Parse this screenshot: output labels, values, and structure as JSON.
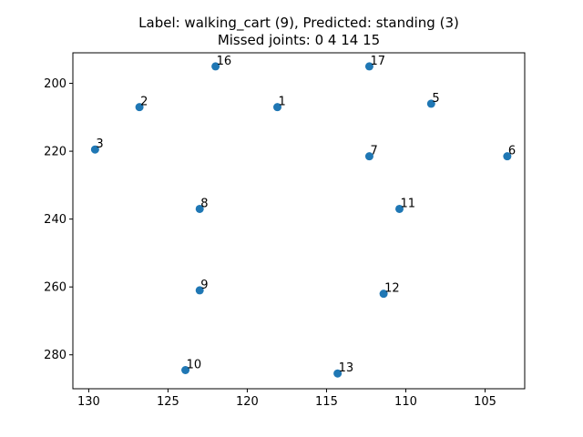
{
  "chart_data": {
    "type": "scatter",
    "title_line1": "Label: walking_cart (9), Predicted: standing (3)",
    "title_line2": "Missed joints: 0 4 14 15",
    "xlabel": "",
    "ylabel": "",
    "xlim": [
      131,
      102.5
    ],
    "ylim": [
      290,
      191
    ],
    "x_inverted": true,
    "y_inverted": true,
    "grid": false,
    "marker_color": "#1f77b4",
    "x_ticks": [
      130,
      125,
      120,
      115,
      110,
      105
    ],
    "x_tick_labels": [
      "130",
      "125",
      "120",
      "115",
      "110",
      "105"
    ],
    "y_ticks": [
      200,
      220,
      240,
      260,
      280
    ],
    "y_tick_labels": [
      "200",
      "220",
      "240",
      "260",
      "280"
    ],
    "points": [
      {
        "label": "1",
        "x": 118.1,
        "y": 207.0
      },
      {
        "label": "2",
        "x": 126.8,
        "y": 207.0
      },
      {
        "label": "3",
        "x": 129.6,
        "y": 219.5
      },
      {
        "label": "5",
        "x": 108.4,
        "y": 206.0
      },
      {
        "label": "6",
        "x": 103.6,
        "y": 221.5
      },
      {
        "label": "7",
        "x": 112.3,
        "y": 221.5
      },
      {
        "label": "8",
        "x": 123.0,
        "y": 237.0
      },
      {
        "label": "9",
        "x": 123.0,
        "y": 261.0
      },
      {
        "label": "10",
        "x": 123.9,
        "y": 284.5
      },
      {
        "label": "11",
        "x": 110.4,
        "y": 237.0
      },
      {
        "label": "12",
        "x": 111.4,
        "y": 262.0
      },
      {
        "label": "13",
        "x": 114.3,
        "y": 285.5
      },
      {
        "label": "16",
        "x": 122.0,
        "y": 195.0
      },
      {
        "label": "17",
        "x": 112.3,
        "y": 195.0
      }
    ]
  }
}
